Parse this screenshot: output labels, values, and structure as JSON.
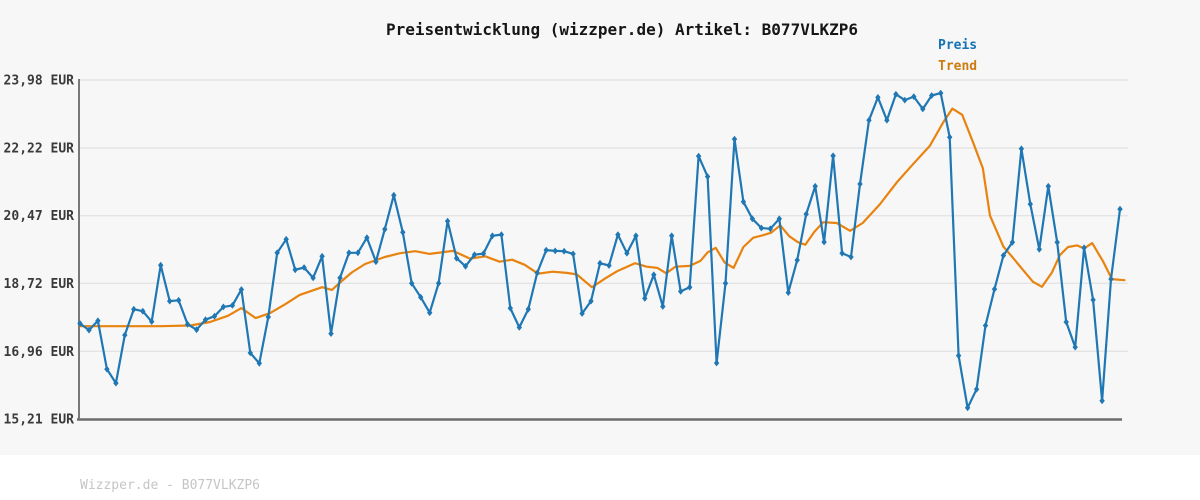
{
  "title": "Preisentwicklung (wizzper.de) Artikel: B077VLKZP6",
  "legend": {
    "preis_label": "Preis",
    "trend_label": "Trend"
  },
  "watermark": "Wizzper.de - B077VLKZP6",
  "colors": {
    "preis_line": "#1f77b4",
    "trend_line": "#e8830f",
    "legend_preis_text": "#1273b7",
    "legend_trend_text": "#cd7b0e",
    "grid": "#e4e4e4",
    "spine": "#787878",
    "bottom_spine": "#6d6d6d",
    "tick_text": "#3a3a3a",
    "title_text": "#161616",
    "watermark_text": "#c5c5c5",
    "figure_bg": "#f7f7f7",
    "bottom_strip_bg": "#ffffff"
  },
  "chart_data": {
    "type": "line",
    "title": "Preisentwicklung (wizzper.de) Artikel: B077VLKZP6",
    "xlabel": "",
    "ylabel": "",
    "x_axis_labels": "none",
    "grid": "horizontal-only",
    "legend_position": "top-right",
    "ylim": [
      15.21,
      23.98
    ],
    "currency": "EUR",
    "y_ticks": [
      {
        "value": 23.98,
        "label": "23,98 EUR"
      },
      {
        "value": 22.22,
        "label": "22,22 EUR"
      },
      {
        "value": 20.47,
        "label": "20,47 EUR"
      },
      {
        "value": 18.72,
        "label": "18,72 EUR"
      },
      {
        "value": 16.96,
        "label": "16,96 EUR"
      },
      {
        "value": 15.21,
        "label": "15,21 EUR"
      }
    ],
    "series": [
      {
        "name": "Preis",
        "marker": "diamond",
        "values": [
          17.68,
          17.51,
          17.75,
          16.5,
          16.14,
          17.38,
          18.05,
          18.0,
          17.73,
          19.19,
          18.26,
          18.28,
          17.66,
          17.52,
          17.78,
          17.87,
          18.11,
          18.15,
          18.56,
          16.92,
          16.65,
          17.85,
          19.51,
          19.86,
          19.07,
          19.13,
          18.86,
          19.42,
          17.42,
          18.86,
          19.51,
          19.51,
          19.9,
          19.28,
          20.12,
          21.0,
          20.04,
          18.72,
          18.36,
          17.96,
          18.72,
          20.33,
          19.37,
          19.16,
          19.46,
          19.49,
          19.95,
          19.98,
          18.08,
          17.58,
          18.05,
          18.99,
          19.58,
          19.56,
          19.55,
          19.48,
          17.94,
          18.26,
          19.24,
          19.18,
          19.98,
          19.5,
          19.95,
          18.33,
          18.94,
          18.12,
          19.95,
          18.51,
          18.62,
          22.01,
          21.48,
          16.66,
          18.72,
          22.45,
          20.83,
          20.39,
          20.15,
          20.13,
          20.39,
          18.48,
          19.32,
          20.51,
          21.23,
          19.79,
          22.02,
          19.5,
          19.4,
          21.29,
          22.94,
          23.53,
          22.94,
          23.61,
          23.46,
          23.55,
          23.23,
          23.58,
          23.64,
          22.5,
          16.85,
          15.5,
          15.98,
          17.63,
          18.57,
          19.44,
          19.78,
          22.2,
          20.77,
          19.6,
          21.23,
          19.78,
          17.72,
          17.07,
          19.64,
          18.29,
          15.68,
          18.83,
          20.64
        ]
      },
      {
        "name": "Trend",
        "marker": "none",
        "points": [
          [
            0,
            17.61
          ],
          [
            4.5,
            17.61
          ],
          [
            8.9,
            17.61
          ],
          [
            12.3,
            17.63
          ],
          [
            14.5,
            17.72
          ],
          [
            16.5,
            17.88
          ],
          [
            18.0,
            18.08
          ],
          [
            19.6,
            17.82
          ],
          [
            21.2,
            17.95
          ],
          [
            22.9,
            18.18
          ],
          [
            24.5,
            18.42
          ],
          [
            27.0,
            18.62
          ],
          [
            28.1,
            18.55
          ],
          [
            29.2,
            18.78
          ],
          [
            30.3,
            19.0
          ],
          [
            31.8,
            19.22
          ],
          [
            34.0,
            19.4
          ],
          [
            35.7,
            19.5
          ],
          [
            37.4,
            19.55
          ],
          [
            39.0,
            19.48
          ],
          [
            41.6,
            19.56
          ],
          [
            43.5,
            19.36
          ],
          [
            45.2,
            19.42
          ],
          [
            46.8,
            19.28
          ],
          [
            48.2,
            19.33
          ],
          [
            49.6,
            19.2
          ],
          [
            51.1,
            18.97
          ],
          [
            52.7,
            19.02
          ],
          [
            54.3,
            18.99
          ],
          [
            55.4,
            18.95
          ],
          [
            57.1,
            18.62
          ],
          [
            58.6,
            18.85
          ],
          [
            59.9,
            19.03
          ],
          [
            61.9,
            19.24
          ],
          [
            63.2,
            19.15
          ],
          [
            64.4,
            19.12
          ],
          [
            65.4,
            18.98
          ],
          [
            66.4,
            19.15
          ],
          [
            68.0,
            19.17
          ],
          [
            69.2,
            19.3
          ],
          [
            70.0,
            19.52
          ],
          [
            70.9,
            19.64
          ],
          [
            71.9,
            19.26
          ],
          [
            72.9,
            19.12
          ],
          [
            74.0,
            19.66
          ],
          [
            75.1,
            19.9
          ],
          [
            76.1,
            19.96
          ],
          [
            77.1,
            20.03
          ],
          [
            78.1,
            20.22
          ],
          [
            79.1,
            19.94
          ],
          [
            80.1,
            19.78
          ],
          [
            80.9,
            19.72
          ],
          [
            81.9,
            20.05
          ],
          [
            82.9,
            20.3
          ],
          [
            84.4,
            20.28
          ],
          [
            85.9,
            20.08
          ],
          [
            87.3,
            20.28
          ],
          [
            89.2,
            20.76
          ],
          [
            91.1,
            21.33
          ],
          [
            92.9,
            21.8
          ],
          [
            94.8,
            22.28
          ],
          [
            96.3,
            22.89
          ],
          [
            97.3,
            23.24
          ],
          [
            98.4,
            23.08
          ],
          [
            99.6,
            22.37
          ],
          [
            100.7,
            21.7
          ],
          [
            101.5,
            20.47
          ],
          [
            103.0,
            19.67
          ],
          [
            104.1,
            19.37
          ],
          [
            105.2,
            19.06
          ],
          [
            106.3,
            18.76
          ],
          [
            107.3,
            18.63
          ],
          [
            108.4,
            19.0
          ],
          [
            109.3,
            19.45
          ],
          [
            110.2,
            19.66
          ],
          [
            111.2,
            19.7
          ],
          [
            112.0,
            19.62
          ],
          [
            112.9,
            19.76
          ],
          [
            114.1,
            19.29
          ],
          [
            115.1,
            18.83
          ],
          [
            116.5,
            18.8
          ]
        ]
      }
    ]
  }
}
